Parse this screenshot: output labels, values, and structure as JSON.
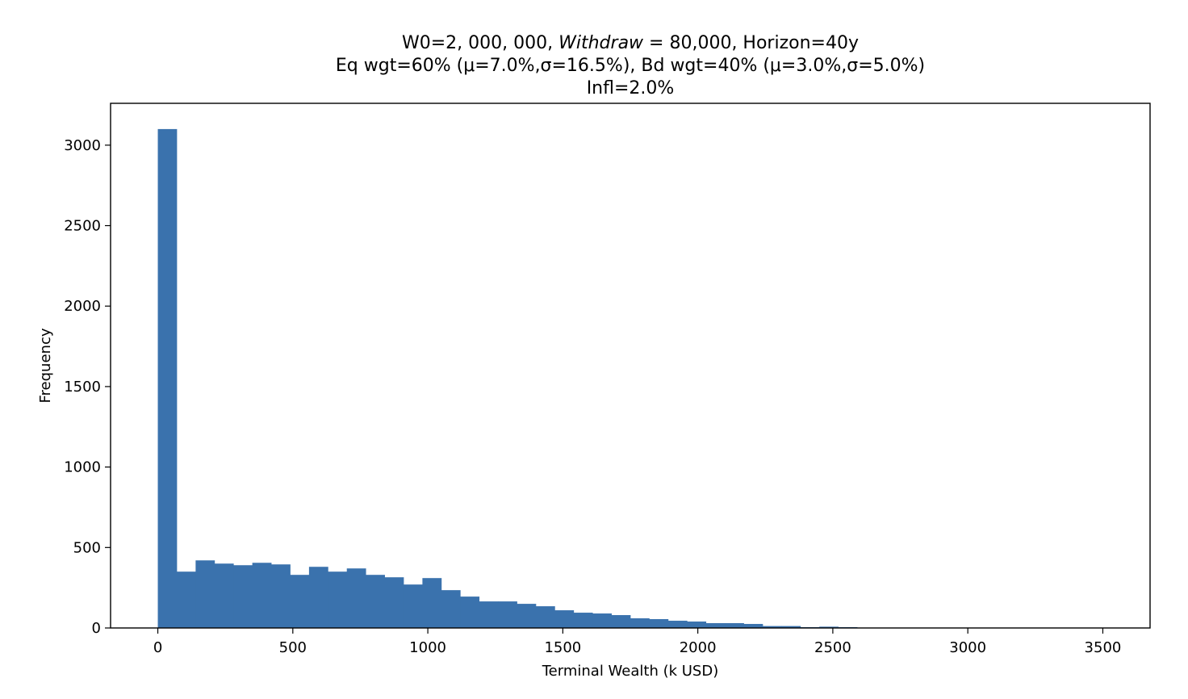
{
  "chart_data": {
    "type": "bar",
    "title": {
      "line1_prefix": "W0=2, 000, 000, ",
      "line1_italic": "Withdraw",
      "line1_suffix": " = 80,000, Horizon=40y",
      "line2": "Eq wgt=60% (μ=7.0%,σ=16.5%), Bd wgt=40% (μ=3.0%,σ=5.0%)",
      "line3": "Infl=2.0%"
    },
    "xlabel": "Terminal Wealth (k USD)",
    "ylabel": "Frequency",
    "xlim": [
      -175,
      3675
    ],
    "ylim": [
      0,
      3260
    ],
    "xticks": [
      0,
      500,
      1000,
      1500,
      2000,
      2500,
      3000,
      3500
    ],
    "xtick_labels": [
      "0",
      "500",
      "1000",
      "1500",
      "2000",
      "2500",
      "3000",
      "3500"
    ],
    "yticks": [
      0,
      500,
      1000,
      1500,
      2000,
      2500,
      3000
    ],
    "ytick_labels": [
      "0",
      "500",
      "1000",
      "1500",
      "2000",
      "2500",
      "3000"
    ],
    "bin_start": 0,
    "bin_width": 70,
    "values": [
      3100,
      350,
      420,
      400,
      390,
      405,
      395,
      330,
      380,
      350,
      370,
      330,
      315,
      270,
      310,
      235,
      195,
      165,
      165,
      150,
      135,
      110,
      95,
      90,
      80,
      60,
      55,
      45,
      40,
      30,
      30,
      25,
      12,
      12,
      5,
      8,
      5,
      2,
      1,
      1,
      1,
      0,
      0,
      0,
      0,
      0,
      0,
      0,
      0,
      0
    ],
    "bar_color": "#3a72ad",
    "grid": false,
    "legend": "none"
  }
}
